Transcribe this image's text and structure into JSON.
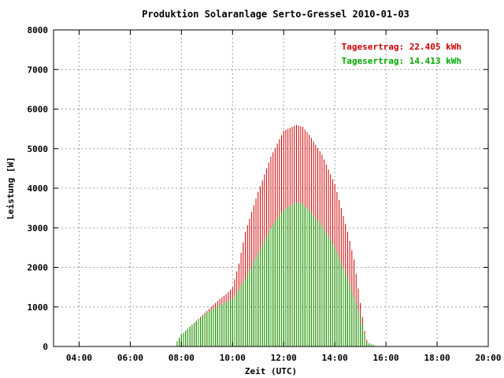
{
  "chart_data": {
    "type": "bar",
    "title": "Produktion Solaranlage Serto-Gressel 2010-01-03",
    "xlabel": "Zeit (UTC)",
    "ylabel": "Leistung [W]",
    "x_unit": "hours UTC",
    "xlim": [
      3,
      20
    ],
    "ylim": [
      0,
      8000
    ],
    "grid": true,
    "legend_position": "top-right",
    "x_ticks": [
      {
        "value": 4,
        "label": "04:00"
      },
      {
        "value": 6,
        "label": "06:00"
      },
      {
        "value": 8,
        "label": "08:00"
      },
      {
        "value": 10,
        "label": "10:00"
      },
      {
        "value": 12,
        "label": "12:00"
      },
      {
        "value": 14,
        "label": "14:00"
      },
      {
        "value": 16,
        "label": "16:00"
      },
      {
        "value": 18,
        "label": "18:00"
      },
      {
        "value": 20,
        "label": "20:00"
      }
    ],
    "y_ticks": [
      {
        "value": 0,
        "label": "0"
      },
      {
        "value": 1000,
        "label": "1000"
      },
      {
        "value": 2000,
        "label": "2000"
      },
      {
        "value": 3000,
        "label": "3000"
      },
      {
        "value": 4000,
        "label": "4000"
      },
      {
        "value": 5000,
        "label": "5000"
      },
      {
        "value": 6000,
        "label": "6000"
      },
      {
        "value": 7000,
        "label": "7000"
      },
      {
        "value": 8000,
        "label": "8000"
      }
    ],
    "series": [
      {
        "label": "Tagesertrag: 22.405 kWh",
        "color": "#cc0000",
        "points": [
          [
            7.75,
            50
          ],
          [
            8,
            300
          ],
          [
            8.5,
            600
          ],
          [
            9,
            900
          ],
          [
            9.5,
            1200
          ],
          [
            9.8,
            1350
          ],
          [
            10,
            1500
          ],
          [
            10.25,
            2100
          ],
          [
            10.5,
            2900
          ],
          [
            11,
            3900
          ],
          [
            11.5,
            4800
          ],
          [
            12,
            5450
          ],
          [
            12.5,
            5600
          ],
          [
            12.75,
            5550
          ],
          [
            13,
            5350
          ],
          [
            13.5,
            4850
          ],
          [
            14,
            4100
          ],
          [
            14.5,
            2900
          ],
          [
            14.75,
            2200
          ],
          [
            15,
            1100
          ],
          [
            15.2,
            250
          ],
          [
            15.35,
            0
          ]
        ]
      },
      {
        "label": "Tagesertrag: 14.413 kWh",
        "color": "#00aa00",
        "points": [
          [
            7.75,
            50
          ],
          [
            8,
            300
          ],
          [
            8.5,
            600
          ],
          [
            9,
            850
          ],
          [
            9.5,
            1050
          ],
          [
            10,
            1200
          ],
          [
            10.5,
            1700
          ],
          [
            11,
            2350
          ],
          [
            11.5,
            3000
          ],
          [
            12,
            3450
          ],
          [
            12.5,
            3650
          ],
          [
            12.75,
            3600
          ],
          [
            13,
            3450
          ],
          [
            13.5,
            3050
          ],
          [
            14,
            2500
          ],
          [
            14.5,
            1750
          ],
          [
            15,
            750
          ],
          [
            15.25,
            100
          ],
          [
            15.5,
            50
          ],
          [
            15.6,
            0
          ]
        ]
      }
    ]
  }
}
